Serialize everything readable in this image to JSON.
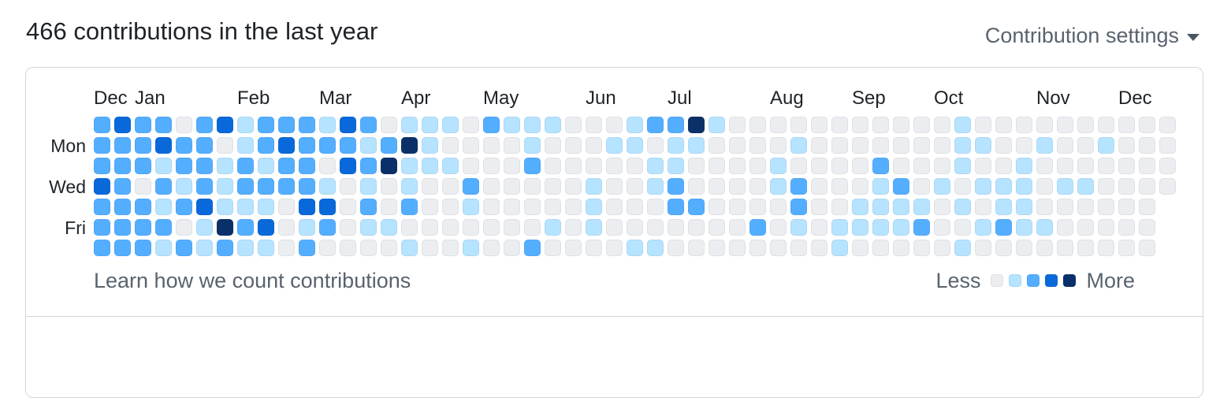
{
  "header": {
    "title": "466 contributions in the last year",
    "settings_label": "Contribution settings"
  },
  "footer": {
    "learn_link": "Learn how we count contributions",
    "legend_less": "Less",
    "legend_more": "More"
  },
  "colors": {
    "text": "#1f2328",
    "muted_text": "#59636e",
    "card_border": "#d0d7de",
    "level_palette": [
      "#ebedf0",
      "#b6e3ff",
      "#54aeff",
      "#0969da",
      "#0a3069"
    ]
  },
  "chart_data": {
    "type": "heatmap",
    "title": "466 contributions in the last year",
    "total_contributions": 466,
    "rows": 7,
    "columns": 53,
    "day_labels": [
      {
        "label": "Mon",
        "row": 1
      },
      {
        "label": "Wed",
        "row": 3
      },
      {
        "label": "Fri",
        "row": 5
      }
    ],
    "months": [
      {
        "label": "Dec",
        "week": 0
      },
      {
        "label": "Jan",
        "week": 2
      },
      {
        "label": "Feb",
        "week": 7
      },
      {
        "label": "Mar",
        "week": 11
      },
      {
        "label": "Apr",
        "week": 15
      },
      {
        "label": "May",
        "week": 19
      },
      {
        "label": "Jun",
        "week": 24
      },
      {
        "label": "Jul",
        "week": 28
      },
      {
        "label": "Aug",
        "week": 33
      },
      {
        "label": "Sep",
        "week": 37
      },
      {
        "label": "Oct",
        "week": 41
      },
      {
        "label": "Nov",
        "week": 46
      },
      {
        "label": "Dec",
        "week": 50
      }
    ],
    "levels": [
      "#ebedf0",
      "#b6e3ff",
      "#54aeff",
      "#0969da",
      "#0a3069"
    ],
    "weeks": [
      "2223222",
      "3222222",
      "2220222",
      "2312121",
      "0221202",
      "2222311",
      "3011142",
      "1122121",
      "2212131",
      "2322000",
      "2222312",
      "1201320",
      "3230000",
      "2121210",
      "0240010",
      "1411201",
      "1110000",
      "1010000",
      "0002101",
      "2000000",
      "1000000",
      "1120002",
      "1000010",
      "0000000",
      "0001110",
      "0100000",
      "1100001",
      "2011001",
      "2112200",
      "4100200",
      "1000000",
      "0000000",
      "0000020",
      "0011000",
      "0102210",
      "0000000",
      "0000011",
      "0000110",
      "0021110",
      "0002110",
      "0000120",
      "0001000",
      "1110101",
      "0101010",
      "0001120",
      "0011110",
      "0100010",
      "0001000",
      "0001000",
      "0100000",
      "0000000",
      "0000000",
      "0000"
    ]
  }
}
